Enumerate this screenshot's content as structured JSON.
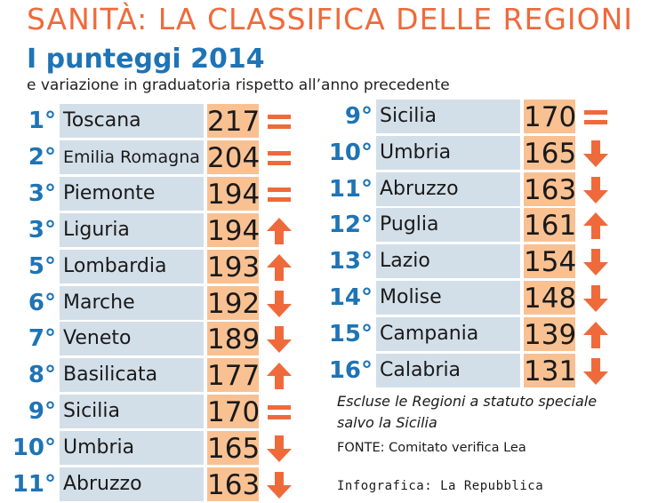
{
  "header": {
    "title": "SANITÀ: LA CLASSIFICA DELLE REGIONI",
    "subtitle": "I punteggi 2014",
    "subtitle2": "e variazione in graduatoria rispetto all’anno precedente"
  },
  "colors": {
    "title": "#ef6a3b",
    "blue": "#1e74b5",
    "name_box": "#d3dfe8",
    "score_box": "#f9c192",
    "trend": "#ef6a3b"
  },
  "legend_icons": {
    "same": "equals-icon",
    "up": "arrow-up-icon",
    "down": "arrow-down-icon"
  },
  "chart_data": {
    "type": "table",
    "title": "SANITÀ: LA CLASSIFICA DELLE REGIONI",
    "subtitle": "I punteggi 2014",
    "columns": [
      "rank",
      "region",
      "score",
      "trend"
    ],
    "left_column": [
      {
        "rank": "1°",
        "region": "Toscana",
        "score": 217,
        "trend": "same"
      },
      {
        "rank": "2°",
        "region": "Emilia Romagna",
        "score": 204,
        "trend": "same"
      },
      {
        "rank": "3°",
        "region": "Piemonte",
        "score": 194,
        "trend": "same"
      },
      {
        "rank": "3°",
        "region": "Liguria",
        "score": 194,
        "trend": "up"
      },
      {
        "rank": "5°",
        "region": "Lombardia",
        "score": 193,
        "trend": "up"
      },
      {
        "rank": "6°",
        "region": "Marche",
        "score": 192,
        "trend": "down"
      },
      {
        "rank": "7°",
        "region": "Veneto",
        "score": 189,
        "trend": "down"
      },
      {
        "rank": "8°",
        "region": "Basilicata",
        "score": 177,
        "trend": "up"
      },
      {
        "rank": "9°",
        "region": "Sicilia",
        "score": 170,
        "trend": "same"
      },
      {
        "rank": "10°",
        "region": "Umbria",
        "score": 165,
        "trend": "down"
      },
      {
        "rank": "11°",
        "region": "Abruzzo",
        "score": 163,
        "trend": "down"
      }
    ],
    "right_column": [
      {
        "rank": "9°",
        "region": "Sicilia",
        "score": 170,
        "trend": "same"
      },
      {
        "rank": "10°",
        "region": "Umbria",
        "score": 165,
        "trend": "down"
      },
      {
        "rank": "11°",
        "region": "Abruzzo",
        "score": 163,
        "trend": "down"
      },
      {
        "rank": "12°",
        "region": "Puglia",
        "score": 161,
        "trend": "up"
      },
      {
        "rank": "13°",
        "region": "Lazio",
        "score": 154,
        "trend": "down"
      },
      {
        "rank": "14°",
        "region": "Molise",
        "score": 148,
        "trend": "down"
      },
      {
        "rank": "15°",
        "region": "Campania",
        "score": 139,
        "trend": "up"
      },
      {
        "rank": "16°",
        "region": "Calabria",
        "score": 131,
        "trend": "down"
      }
    ]
  },
  "footer": {
    "note": "Escluse le Regioni a statuto speciale salvo la Sicilia",
    "source": "FONTE: Comitato verifica Lea",
    "credit": "Infografica: La Repubblica"
  }
}
